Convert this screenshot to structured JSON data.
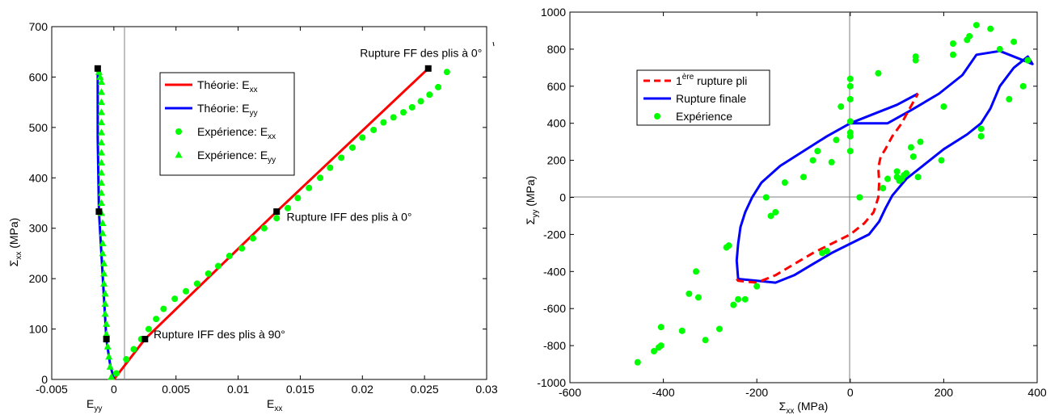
{
  "chart_data": [
    {
      "type": "line",
      "title": "",
      "ylabel": {
        "main": "Σ",
        "sub": "xx",
        "unit": " (MPa)"
      },
      "xlabel_left": {
        "main": "E",
        "sub": "yy"
      },
      "xlabel_right": {
        "main": "E",
        "sub": "xx"
      },
      "xlim": [
        -0.005,
        0.03
      ],
      "ylim": [
        0,
        700
      ],
      "xticks": [
        -0.005,
        0,
        0.005,
        0.01,
        0.015,
        0.02,
        0.025,
        0.03
      ],
      "xtick_labels": [
        "-0.005",
        "0",
        "0.005",
        "0.01",
        "0.015",
        "0.02",
        "0.025",
        "0.03"
      ],
      "yticks": [
        0,
        100,
        200,
        300,
        400,
        500,
        600,
        700
      ],
      "ytick_labels": [
        "0",
        "100",
        "200",
        "300",
        "400",
        "500",
        "600",
        "700"
      ],
      "legend_position": "upper-center",
      "legend": [
        {
          "main": "Théorie: E",
          "sub": "xx",
          "color": "#ff0000",
          "marker": "line"
        },
        {
          "main": "Théorie: E",
          "sub": "yy",
          "color": "#0000ff",
          "marker": "line"
        },
        {
          "main": "Expérience: E",
          "sub": "xx",
          "color": "#00ff00",
          "marker": "circle"
        },
        {
          "main": "Expérience: E",
          "sub": "yy",
          "color": "#00ff00",
          "marker": "triangle"
        }
      ],
      "series": [
        {
          "name": "Théorie: Exx",
          "color": "#ff0000",
          "style": "solid",
          "x": [
            0,
            0.0025,
            0.0131,
            0.0253
          ],
          "y": [
            0,
            80,
            333,
            617
          ]
        },
        {
          "name": "Théorie: Eyy",
          "color": "#0000ff",
          "style": "solid",
          "x": [
            0,
            -0.0003,
            -0.0006,
            -0.0012,
            -0.0013,
            -0.0013
          ],
          "y": [
            0,
            30,
            80,
            333,
            480,
            617
          ]
        },
        {
          "name": "Expérience: Exx",
          "color": "#00ff00",
          "marker": "circle",
          "x": [
            0.0002,
            0.001,
            0.0016,
            0.0022,
            0.0028,
            0.0034,
            0.004,
            0.0049,
            0.0058,
            0.0067,
            0.0076,
            0.0084,
            0.0093,
            0.0103,
            0.0112,
            0.0121,
            0.0131,
            0.014,
            0.0148,
            0.0157,
            0.0166,
            0.0174,
            0.0183,
            0.0192,
            0.02,
            0.0209,
            0.0217,
            0.0225,
            0.0233,
            0.024,
            0.0247,
            0.0254,
            0.0261,
            0.0268
          ],
          "y": [
            12,
            40,
            60,
            80,
            100,
            120,
            140,
            160,
            175,
            190,
            210,
            225,
            245,
            260,
            280,
            300,
            320,
            340,
            360,
            380,
            400,
            420,
            440,
            460,
            480,
            495,
            510,
            520,
            530,
            540,
            552,
            565,
            580,
            610
          ]
        },
        {
          "name": "Expérience: Eyy",
          "color": "#00ff00",
          "marker": "triangle",
          "x": [
            -0.0002,
            -0.0003,
            -0.0004,
            -0.0005,
            -0.0006,
            -0.0006,
            -0.0007,
            -0.0007,
            -0.0007,
            -0.0008,
            -0.0008,
            -0.0008,
            -0.0009,
            -0.0009,
            -0.0009,
            -0.0009,
            -0.001,
            -0.001,
            -0.001,
            -0.001,
            -0.001,
            -0.001,
            -0.001,
            -0.001,
            -0.001,
            -0.001,
            -0.001,
            -0.001,
            -0.001,
            -0.001,
            -0.0011,
            -0.0012
          ],
          "y": [
            5,
            25,
            45,
            65,
            90,
            110,
            130,
            150,
            170,
            190,
            210,
            230,
            250,
            270,
            290,
            310,
            330,
            350,
            370,
            390,
            410,
            430,
            450,
            470,
            490,
            510,
            530,
            550,
            570,
            590,
            600,
            610
          ]
        }
      ],
      "rupture_points": {
        "x": [
          0.0025,
          0.0131,
          0.0253,
          -0.0006,
          -0.0012,
          -0.0013
        ],
        "y": [
          80,
          333,
          617,
          80,
          333,
          617
        ]
      },
      "annotations": [
        {
          "text": "Rupture FF des plis à 0°",
          "x": 0.0198,
          "y": 640
        },
        {
          "text": "Rupture IFF des plis à 0°",
          "x": 0.0139,
          "y": 315
        },
        {
          "text": "Rupture IFF des plis à 90°",
          "x": 0.0032,
          "y": 82
        }
      ]
    },
    {
      "type": "line",
      "title": "",
      "xlabel": {
        "main": "Σ",
        "sub": "xx",
        "unit": " (MPa)"
      },
      "ylabel": {
        "main": "Σ",
        "sub": "yy",
        "unit": " (MPa)"
      },
      "xlim": [
        -600,
        400
      ],
      "ylim": [
        -1000,
        1000
      ],
      "xticks": [
        -600,
        -400,
        -200,
        0,
        200,
        400
      ],
      "xtick_labels": [
        "-600",
        "-400",
        "-200",
        "0",
        "200",
        "400"
      ],
      "yticks": [
        -1000,
        -800,
        -600,
        -400,
        -200,
        0,
        200,
        400,
        600,
        800,
        1000
      ],
      "ytick_labels": [
        "-1000",
        "-800",
        "-600",
        "-400",
        "-200",
        "0",
        "200",
        "400",
        "600",
        "800",
        "1000"
      ],
      "legend_position": "upper-left",
      "legend": [
        {
          "main": "1",
          "sup": "ère",
          "rest": " rupture pli",
          "color": "#ff0000",
          "marker": "dashed"
        },
        {
          "main": "Rupture finale",
          "color": "#0000ff",
          "marker": "line"
        },
        {
          "main": "Expérience",
          "color": "#00ff00",
          "marker": "circle"
        }
      ],
      "series": [
        {
          "name": "Rupture finale",
          "color": "#0000ff",
          "style": "solid",
          "x": [
            145,
            100,
            50,
            0,
            -50,
            -100,
            -150,
            -190,
            -210,
            -225,
            -235,
            -240,
            -243,
            -240,
            -200,
            -160,
            -120,
            -80,
            -40,
            0,
            40,
            62,
            75,
            90,
            120,
            160,
            200,
            250,
            280,
            300,
            320,
            350,
            380,
            390,
            370,
            320,
            270,
            240,
            190,
            130,
            80,
            145
          ],
          "x_closed": [
            145,
            100,
            50,
            0,
            -50,
            -100,
            -150,
            -190,
            -210,
            -225,
            -235,
            -240,
            -243,
            -240,
            -200,
            -160,
            -120,
            -80,
            -40,
            0,
            40,
            62,
            75,
            90,
            120,
            160,
            200,
            250,
            280,
            300,
            320,
            350,
            380,
            390,
            370,
            320,
            270,
            240,
            190,
            130,
            80,
            20,
            0,
            -50,
            -100,
            -150,
            -190,
            -210
          ],
          "y_closed": [
            560,
            500,
            450,
            400,
            330,
            250,
            170,
            80,
            0,
            -80,
            -160,
            -250,
            -340,
            -440,
            -450,
            -460,
            -420,
            -360,
            -300,
            -250,
            -200,
            -130,
            -60,
            10,
            100,
            180,
            260,
            340,
            400,
            480,
            600,
            700,
            760,
            720,
            740,
            790,
            770,
            660,
            560,
            470,
            400,
            400,
            400,
            330,
            250,
            170,
            80,
            0
          ],
          "y": [
            560,
            500,
            450,
            400,
            330,
            250,
            170,
            80,
            0,
            -80,
            -160,
            -250,
            -340,
            -440,
            -450,
            -460,
            -420,
            -360,
            -300,
            -250,
            -200,
            -130,
            -60,
            10,
            100,
            180,
            260,
            340,
            400,
            480,
            600,
            700,
            760,
            720,
            740,
            790,
            770,
            660,
            560,
            470,
            400,
            560
          ]
        },
        {
          "name": "1ère rupture pli",
          "color": "#ff0000",
          "style": "dashed",
          "x": [
            -243,
            -240,
            -200,
            -160,
            -120,
            -80,
            -40,
            0,
            30,
            50,
            55,
            60,
            62,
            60,
            65,
            75,
            90,
            110,
            125,
            145
          ],
          "y": [
            -440,
            -450,
            -460,
            -420,
            -360,
            -300,
            -250,
            -200,
            -140,
            -80,
            -40,
            0,
            80,
            160,
            220,
            260,
            330,
            400,
            470,
            560
          ]
        },
        {
          "name": "Expérience",
          "color": "#00ff00",
          "marker": "circle",
          "x": [
            -455,
            -420,
            -410,
            -405,
            -405,
            -360,
            -345,
            -330,
            -325,
            -310,
            -280,
            -265,
            -260,
            -250,
            -240,
            -225,
            -200,
            -180,
            -170,
            -160,
            -140,
            -100,
            -80,
            -70,
            -60,
            -50,
            -40,
            -30,
            -20,
            0,
            0,
            0,
            0,
            0,
            0,
            0,
            20,
            60,
            70,
            80,
            100,
            100,
            105,
            110,
            115,
            120,
            130,
            135,
            140,
            140,
            145,
            150,
            195,
            200,
            220,
            220,
            250,
            255,
            270,
            280,
            280,
            300,
            320,
            340,
            350,
            370,
            380
          ],
          "y": [
            -890,
            -830,
            -810,
            -800,
            -700,
            -720,
            -520,
            -400,
            -540,
            -770,
            -710,
            -270,
            -260,
            -580,
            -550,
            -550,
            -480,
            0,
            -100,
            -80,
            80,
            110,
            200,
            250,
            -300,
            -290,
            190,
            310,
            490,
            600,
            640,
            530,
            410,
            350,
            250,
            330,
            0,
            670,
            50,
            100,
            110,
            140,
            90,
            100,
            120,
            130,
            270,
            220,
            740,
            760,
            110,
            300,
            200,
            490,
            830,
            770,
            850,
            870,
            930,
            370,
            330,
            910,
            800,
            530,
            840,
            600,
            740
          ]
        }
      ]
    }
  ]
}
